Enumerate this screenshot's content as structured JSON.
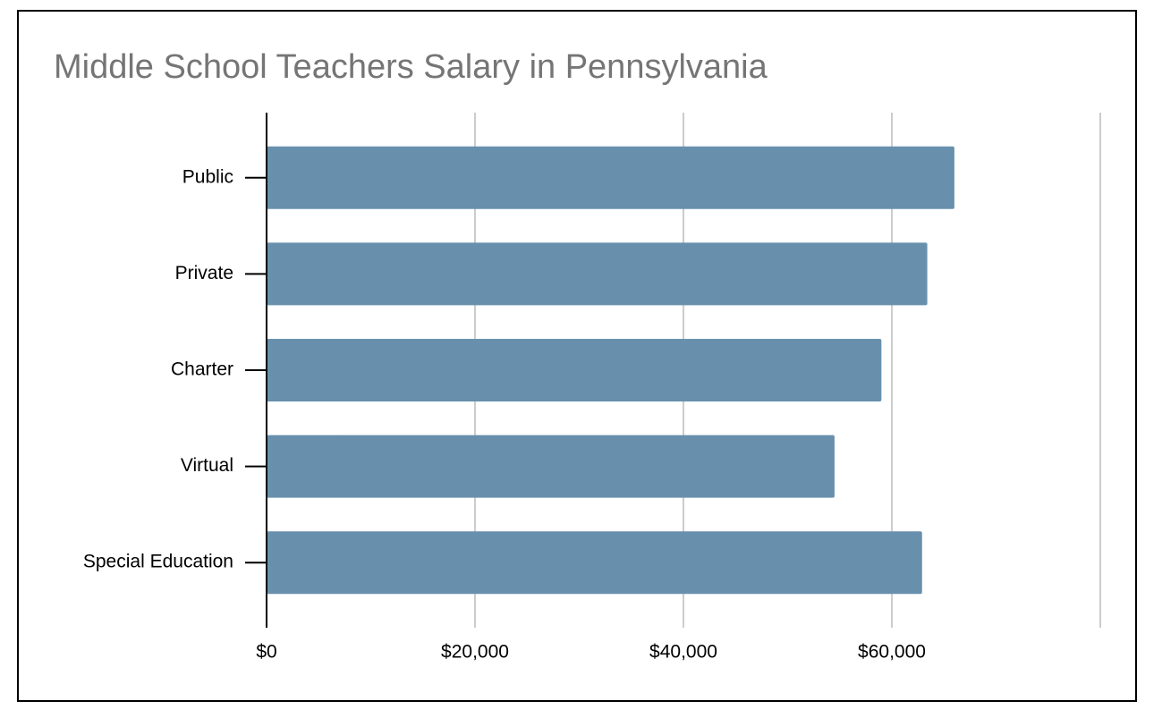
{
  "chart_data": {
    "type": "bar",
    "orientation": "horizontal",
    "title": "Middle School Teachers Salary in Pennsylvania",
    "categories": [
      "Public",
      "Private",
      "Charter",
      "Virtual",
      "Special Education"
    ],
    "values": [
      66000,
      63400,
      59000,
      54500,
      62900
    ],
    "color": "#6890ad",
    "xlim": [
      0,
      80000
    ],
    "xticks": [
      {
        "value": 0,
        "label": "$0"
      },
      {
        "value": 20000,
        "label": "$20,000"
      },
      {
        "value": 40000,
        "label": "$40,000"
      },
      {
        "value": 60000,
        "label": "$60,000"
      }
    ],
    "grid": true
  }
}
